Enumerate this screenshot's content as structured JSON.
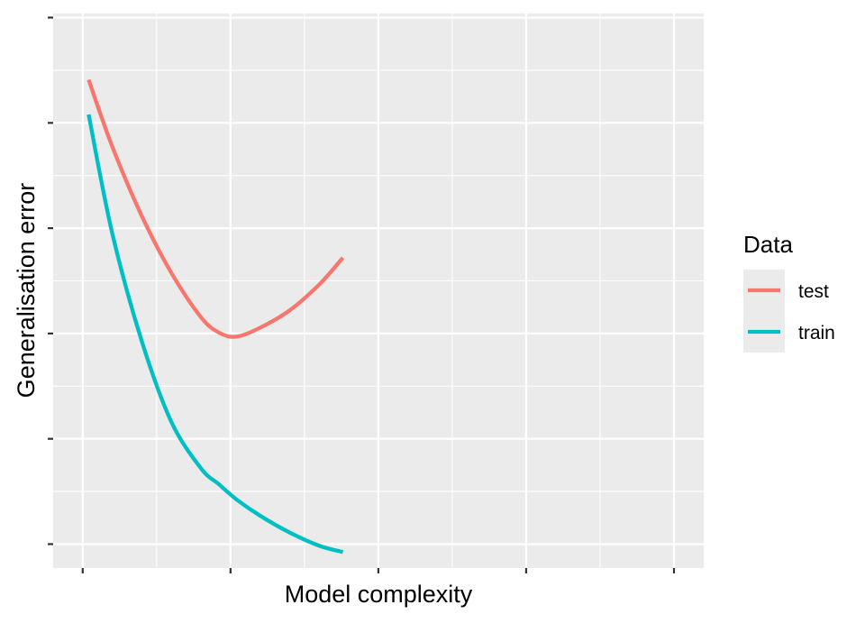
{
  "chart_data": {
    "type": "line",
    "title": "",
    "xlabel": "Model complexity",
    "ylabel": "Generalisation error",
    "xlim": [
      0,
      10
    ],
    "ylim": [
      0,
      10
    ],
    "grid": true,
    "legend": {
      "title": "Data",
      "placement": "right"
    },
    "series": [
      {
        "name": "test",
        "color": "#F8766D",
        "x": [
          0.1,
          0.5,
          1.0,
          1.5,
          2.0,
          2.3,
          2.6,
          3.0,
          3.5,
          4.0,
          4.4
        ],
        "y": [
          8.82,
          7.55,
          6.23,
          5.15,
          4.31,
          4.02,
          3.94,
          4.11,
          4.44,
          4.93,
          5.44
        ]
      },
      {
        "name": "train",
        "color": "#00BFC4",
        "x": [
          0.1,
          0.5,
          1.0,
          1.5,
          2.0,
          2.3,
          2.6,
          3.0,
          3.5,
          4.0,
          4.4
        ],
        "y": [
          8.16,
          5.9,
          3.85,
          2.32,
          1.44,
          1.14,
          0.85,
          0.54,
          0.22,
          -0.03,
          -0.15
        ]
      }
    ]
  }
}
